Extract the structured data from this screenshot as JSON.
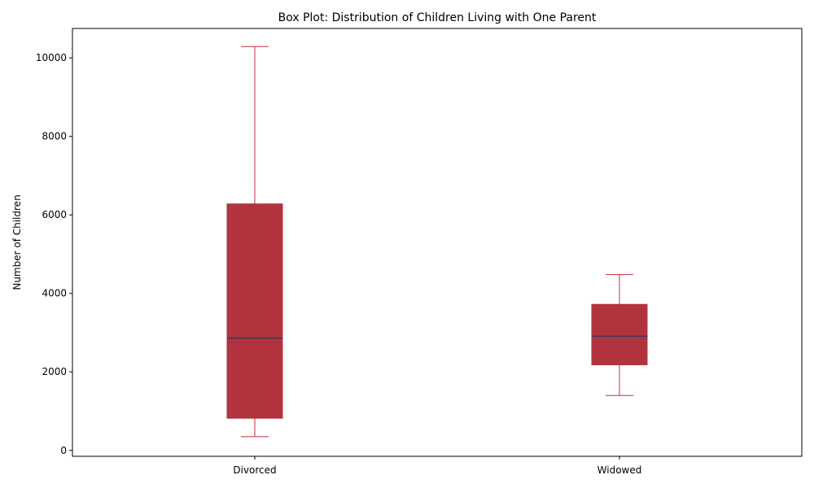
{
  "chart_data": {
    "type": "box",
    "title": "Box Plot: Distribution of Children Living with One Parent",
    "xlabel": "",
    "ylabel": "Number of Children",
    "ylim": [
      -150,
      10750
    ],
    "yticks": [
      0,
      2000,
      4000,
      6000,
      8000,
      10000
    ],
    "categories": [
      "Divorced",
      "Widowed"
    ],
    "boxes": [
      {
        "category": "Divorced",
        "whisker_low": 350,
        "q1": 820,
        "median": 2860,
        "q3": 6280,
        "whisker_high": 10290
      },
      {
        "category": "Widowed",
        "whisker_low": 1400,
        "q1": 2180,
        "median": 2910,
        "q3": 3720,
        "whisker_high": 4480
      }
    ],
    "colors": {
      "box_fill": "#b0333e",
      "whisker": "#c8283c",
      "median": "#3b3a5e",
      "axis": "#000000"
    },
    "grid": false,
    "legend": "none"
  }
}
